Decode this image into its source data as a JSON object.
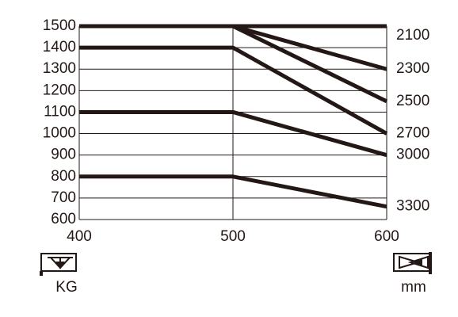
{
  "chart_data": {
    "type": "line",
    "x": [
      400,
      500,
      600
    ],
    "xlim": [
      400,
      600
    ],
    "xticks": [
      400,
      500,
      600
    ],
    "ylim": [
      600,
      1500
    ],
    "yticks": [
      600,
      700,
      800,
      900,
      1000,
      1100,
      1200,
      1300,
      1400,
      1500
    ],
    "grid": true,
    "series": [
      {
        "name": "2100",
        "color": "#231815",
        "values": [
          1500,
          1500,
          1500
        ]
      },
      {
        "name": "2300",
        "color": "#231815",
        "values": [
          1500,
          1500,
          1300
        ]
      },
      {
        "name": "2500",
        "color": "#231815",
        "values": [
          1500,
          1500,
          1150
        ]
      },
      {
        "name": "2700",
        "color": "#231815",
        "values": [
          1400,
          1400,
          1000
        ]
      },
      {
        "name": "3000",
        "color": "#231815",
        "values": [
          1100,
          1100,
          900
        ]
      },
      {
        "name": "3300",
        "color": "#231815",
        "values": [
          800,
          800,
          660
        ]
      }
    ],
    "annotations": [
      "KG",
      "mm"
    ]
  }
}
